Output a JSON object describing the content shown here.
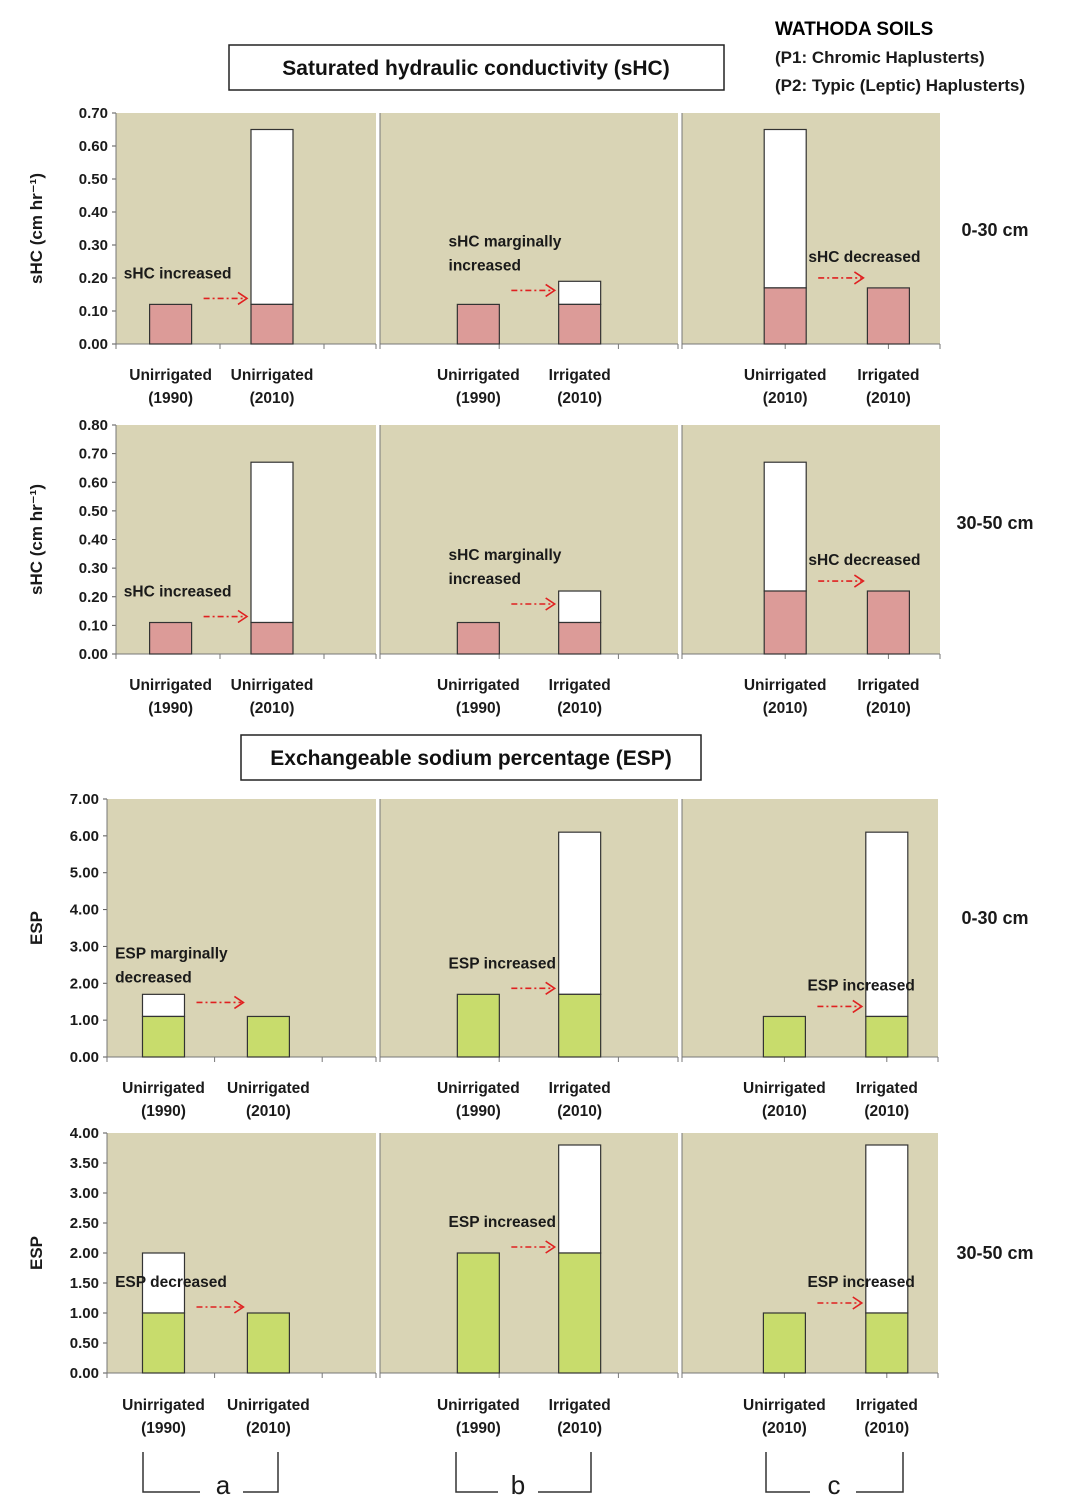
{
  "header": {
    "brand": "WATHODA SOILS",
    "legend_lines": [
      "(P1: Chromic Haplusterts)",
      "(P2: Typic (Leptic) Haplusterts)"
    ]
  },
  "sections": {
    "shc_title": "Saturated hydraulic conductivity (sHC)",
    "esp_title": "Exchangeable sodium percentage (ESP)"
  },
  "groups": [
    "a",
    "b",
    "c"
  ],
  "colors": {
    "plot_bg": "#d9d4b5",
    "shc_bar": "#dc9b98",
    "esp_bar": "#c8dc6c",
    "arrow": "#e02020",
    "top_bar": "#ffffff",
    "brand": "#8a4a16"
  },
  "chart_data": [
    {
      "type": "bar",
      "stacked": true,
      "row": "sHC 0-30 cm",
      "ylabel": "sHC (cm hr⁻¹)",
      "depth_label": "0-30 cm",
      "ylim": [
        0,
        0.7
      ],
      "ticks": [
        "0.00",
        "0.10",
        "0.20",
        "0.30",
        "0.40",
        "0.50",
        "0.60",
        "0.70"
      ],
      "grid": false,
      "panels": [
        {
          "group": "a",
          "annotation": [
            "sHC increased"
          ],
          "categories": [
            [
              "Unirrigated",
              "(1990)"
            ],
            [
              "Unirrigated",
              "(2010)"
            ]
          ],
          "base": [
            0.12,
            0.12
          ],
          "total": [
            0.12,
            0.65
          ]
        },
        {
          "group": "b",
          "annotation": [
            "sHC marginally",
            "increased"
          ],
          "categories": [
            [
              "Unirrigated",
              "(1990)"
            ],
            [
              "Irrigated",
              "(2010)"
            ]
          ],
          "base": [
            0.12,
            0.12
          ],
          "total": [
            0.12,
            0.19
          ]
        },
        {
          "group": "c",
          "annotation": [
            "sHC decreased"
          ],
          "categories": [
            [
              "Unirrigated",
              "(2010)"
            ],
            [
              "Irrigated",
              "(2010)"
            ]
          ],
          "base": [
            0.17,
            0.17
          ],
          "total": [
            0.65,
            0.17
          ]
        }
      ]
    },
    {
      "type": "bar",
      "stacked": true,
      "row": "sHC 30-50 cm",
      "ylabel": "sHC (cm hr⁻¹)",
      "depth_label": "30-50 cm",
      "ylim": [
        0,
        0.8
      ],
      "ticks": [
        "0.00",
        "0.10",
        "0.20",
        "0.30",
        "0.40",
        "0.50",
        "0.60",
        "0.70",
        "0.80"
      ],
      "grid": false,
      "panels": [
        {
          "group": "a",
          "annotation": [
            "sHC increased"
          ],
          "categories": [
            [
              "Unirrigated",
              "(1990)"
            ],
            [
              "Unirrigated",
              "(2010)"
            ]
          ],
          "base": [
            0.11,
            0.11
          ],
          "total": [
            0.11,
            0.67
          ]
        },
        {
          "group": "b",
          "annotation": [
            "sHC marginally",
            "increased"
          ],
          "categories": [
            [
              "Unirrigated",
              "(1990)"
            ],
            [
              "Irrigated",
              "(2010)"
            ]
          ],
          "base": [
            0.11,
            0.11
          ],
          "total": [
            0.11,
            0.22
          ]
        },
        {
          "group": "c",
          "annotation": [
            "sHC decreased"
          ],
          "categories": [
            [
              "Unirrigated",
              "(2010)"
            ],
            [
              "Irrigated",
              "(2010)"
            ]
          ],
          "base": [
            0.22,
            0.22
          ],
          "total": [
            0.67,
            0.22
          ]
        }
      ]
    },
    {
      "type": "bar",
      "stacked": true,
      "row": "ESP 0-30 cm",
      "ylabel": "ESP",
      "depth_label": "0-30 cm",
      "ylim": [
        0,
        7
      ],
      "ticks": [
        "0.00",
        "1.00",
        "2.00",
        "3.00",
        "4.00",
        "5.00",
        "6.00",
        "7.00"
      ],
      "grid": false,
      "panels": [
        {
          "group": "a",
          "annotation": [
            "ESP marginally",
            "decreased"
          ],
          "categories": [
            [
              "Unirrigated",
              "(1990)"
            ],
            [
              "Unirrigated",
              "(2010)"
            ]
          ],
          "base": [
            1.1,
            1.1
          ],
          "total": [
            1.7,
            1.1
          ]
        },
        {
          "group": "b",
          "annotation": [
            "ESP increased"
          ],
          "categories": [
            [
              "Unirrigated",
              "(1990)"
            ],
            [
              "Irrigated",
              "(2010)"
            ]
          ],
          "base": [
            1.7,
            1.7
          ],
          "total": [
            1.7,
            6.1
          ]
        },
        {
          "group": "c",
          "annotation": [
            "ESP increased"
          ],
          "categories": [
            [
              "Unirrigated",
              "(2010)"
            ],
            [
              "Irrigated",
              "(2010)"
            ]
          ],
          "base": [
            1.1,
            1.1
          ],
          "total": [
            1.1,
            6.1
          ]
        }
      ]
    },
    {
      "type": "bar",
      "stacked": true,
      "row": "ESP 30-50 cm",
      "ylabel": "ESP",
      "depth_label": "30-50 cm",
      "ylim": [
        0,
        4
      ],
      "ticks": [
        "0.00",
        "0.50",
        "1.00",
        "1.50",
        "2.00",
        "2.50",
        "3.00",
        "3.50",
        "4.00"
      ],
      "grid": false,
      "panels": [
        {
          "group": "a",
          "annotation": [
            "ESP decreased"
          ],
          "categories": [
            [
              "Unirrigated",
              "(1990)"
            ],
            [
              "Unirrigated",
              "(2010)"
            ]
          ],
          "base": [
            1.0,
            1.0
          ],
          "total": [
            2.0,
            1.0
          ]
        },
        {
          "group": "b",
          "annotation": [
            "ESP increased"
          ],
          "categories": [
            [
              "Unirrigated",
              "(1990)"
            ],
            [
              "Irrigated",
              "(2010)"
            ]
          ],
          "base": [
            2.0,
            2.0
          ],
          "total": [
            2.0,
            3.8
          ]
        },
        {
          "group": "c",
          "annotation": [
            "ESP increased"
          ],
          "categories": [
            [
              "Unirrigated",
              "(2010)"
            ],
            [
              "Irrigated",
              "(2010)"
            ]
          ],
          "base": [
            1.0,
            1.0
          ],
          "total": [
            1.0,
            3.8
          ]
        }
      ]
    }
  ]
}
